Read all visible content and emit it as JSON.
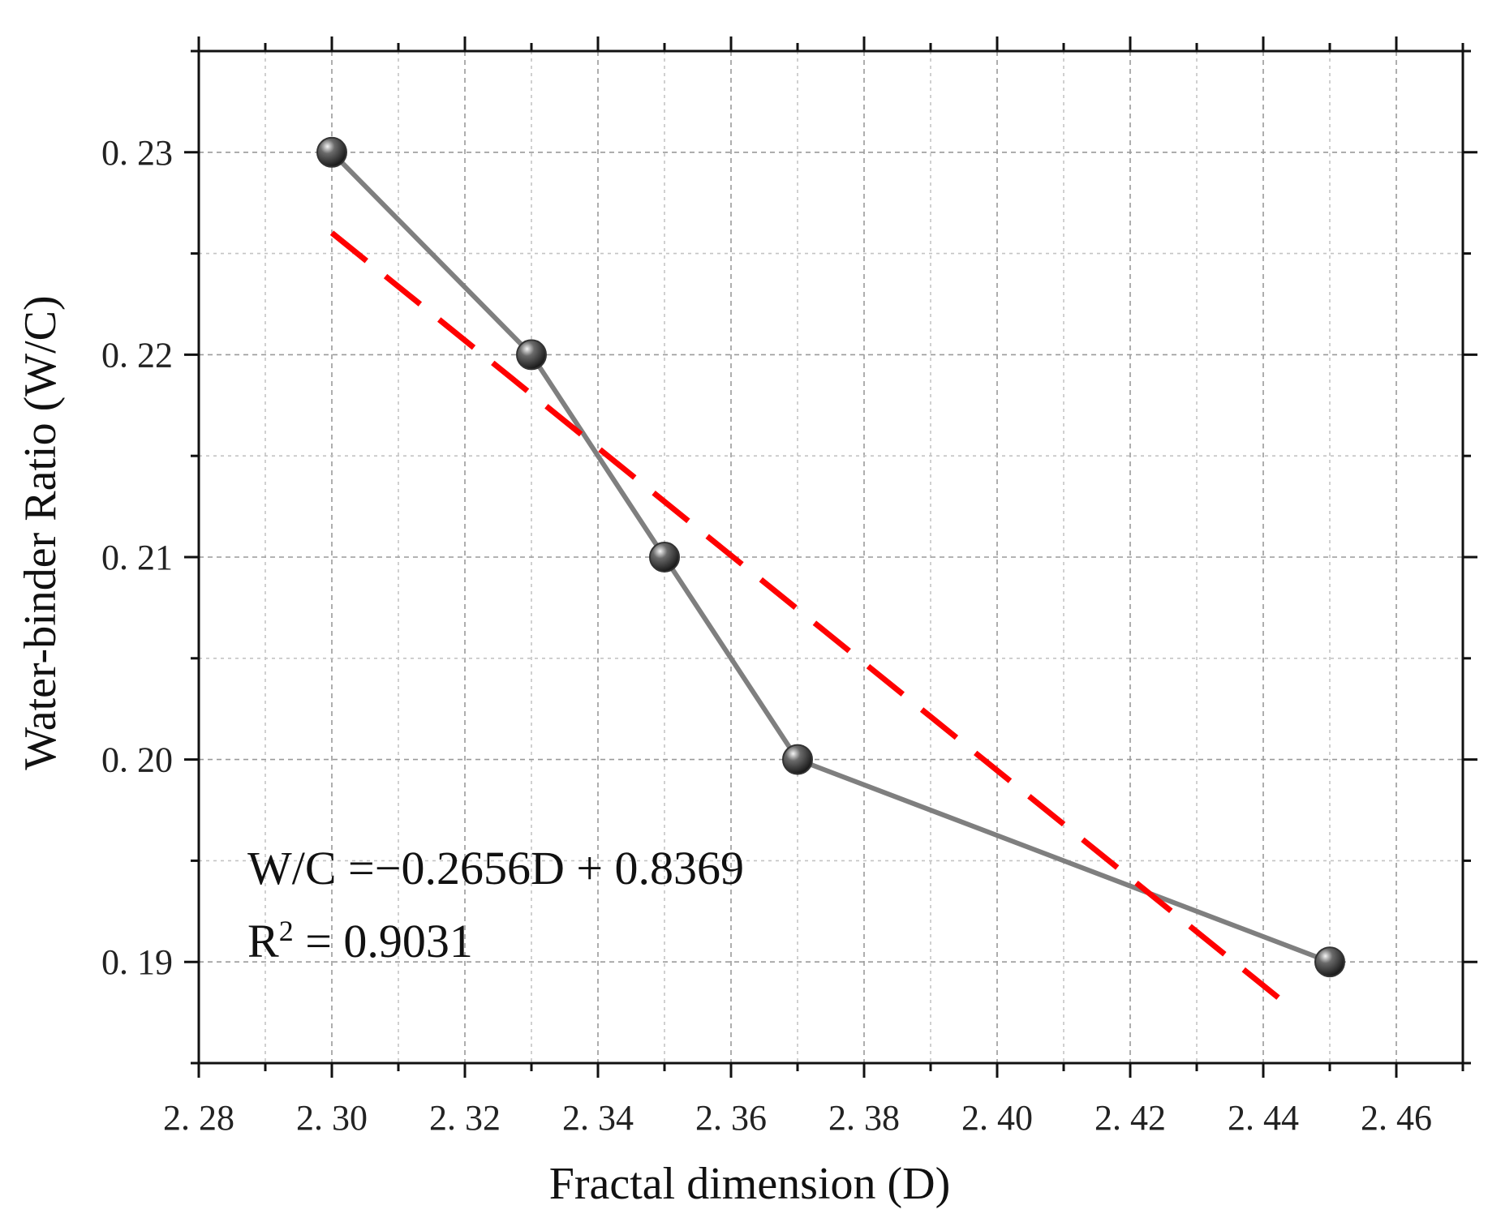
{
  "chart_data": {
    "type": "line",
    "title": "",
    "xlabel": "Fractal dimension (D)",
    "ylabel": "Water-binder Ratio (W/C)",
    "xlim": [
      2.28,
      2.47
    ],
    "ylim": [
      0.185,
      0.235
    ],
    "x_ticks": [
      2.28,
      2.3,
      2.32,
      2.34,
      2.36,
      2.38,
      2.4,
      2.42,
      2.44,
      2.46
    ],
    "x_tick_labels": [
      "2. 28",
      "2. 30",
      "2. 32",
      "2. 34",
      "2. 36",
      "2. 38",
      "2. 40",
      "2. 42",
      "2. 44",
      "2. 46"
    ],
    "y_ticks": [
      0.19,
      0.2,
      0.21,
      0.22,
      0.23
    ],
    "y_tick_labels": [
      "0. 19",
      "0. 20",
      "0. 21",
      "0. 22",
      "0. 23"
    ],
    "grid": true,
    "series": [
      {
        "style": "solid-line-with-markers",
        "color": "#7f7f7f",
        "marker_color": "#333333",
        "x": [
          2.3,
          2.33,
          2.35,
          2.37,
          2.45
        ],
        "y": [
          0.23,
          0.22,
          0.21,
          0.2,
          0.19
        ]
      },
      {
        "style": "dashed-fit-line",
        "color": "#ff0000",
        "slope": -0.2656,
        "intercept": 0.8369,
        "x_range": [
          2.3,
          2.445
        ]
      }
    ],
    "annotations": {
      "equation_main": "W/C =−0.2656D + 0.8369",
      "r2_prefix": "R",
      "r2_sup": "2",
      "r2_rest": " = 0.9031"
    }
  }
}
